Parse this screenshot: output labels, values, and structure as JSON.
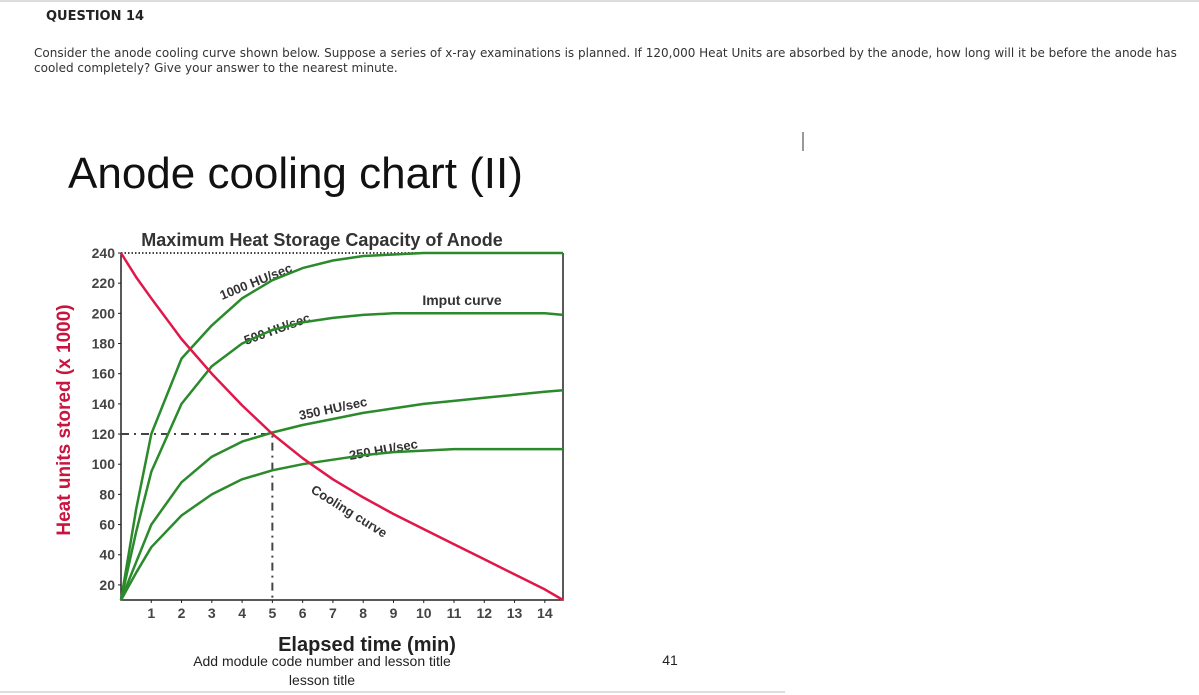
{
  "question": {
    "number": "QUESTION 14",
    "text": "Consider the anode cooling curve shown below.  Suppose a series of x-ray examinations is planned.  If 120,000 Heat Units are absorbed by the anode, how long will it be before the anode has cooled completely? Give your answer to the nearest minute."
  },
  "slide": {
    "title": "Anode cooling chart (II)",
    "footer": "Add module code number and lesson title",
    "page": "41"
  },
  "chart_data": {
    "type": "line",
    "y_label": "Heat units stored (x 1000)",
    "x_label": "Elapsed time (min)",
    "annotations": {
      "capacity": "Maximum Heat Storage Capacity of Anode",
      "input": "Imput curve"
    },
    "capacity_value": 240,
    "marker": {
      "x": 5,
      "y": 120
    },
    "x": [
      0,
      0.5,
      1,
      2,
      3,
      4,
      5,
      6,
      7,
      8,
      9,
      10,
      11,
      12,
      13,
      14,
      14.6
    ],
    "series": [
      {
        "name": "1000 HU/sec",
        "color": "#2b8a2b",
        "values": [
          10,
          70,
          120,
          170,
          192,
          210,
          222,
          230,
          235,
          238,
          239,
          240,
          240,
          240,
          240,
          240,
          240
        ]
      },
      {
        "name": "500 HU/sec",
        "color": "#2b8a2b",
        "values": [
          10,
          55,
          95,
          140,
          165,
          180,
          189,
          194,
          197,
          199,
          200,
          200,
          200,
          200,
          200,
          200,
          199
        ]
      },
      {
        "name": "350 HU/sec",
        "color": "#2b8a2b",
        "values": [
          10,
          35,
          60,
          88,
          105,
          115,
          121,
          126,
          130,
          134,
          137,
          140,
          142,
          144,
          146,
          148,
          149
        ]
      },
      {
        "name": "250 HU/sec",
        "color": "#2b8a2b",
        "values": [
          10,
          28,
          45,
          66,
          80,
          90,
          96,
          100,
          103,
          106,
          108,
          109,
          110,
          110,
          110,
          110,
          110
        ]
      },
      {
        "name": "Cooling curve",
        "color": "#e0184a",
        "values": [
          240,
          224,
          210,
          183,
          160,
          139,
          120,
          104,
          90,
          78,
          67,
          57,
          47,
          37,
          27,
          17,
          10
        ]
      }
    ],
    "xlim": [
      0,
      14.6
    ],
    "ylim": [
      10,
      240
    ],
    "xticks": [
      1,
      2,
      3,
      4,
      5,
      6,
      7,
      8,
      9,
      10,
      11,
      12,
      13,
      14
    ],
    "yticks": [
      20,
      40,
      60,
      80,
      100,
      120,
      140,
      160,
      180,
      200,
      220,
      240
    ]
  }
}
